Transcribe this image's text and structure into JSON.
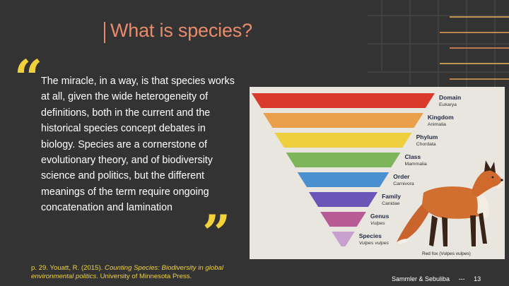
{
  "slide": {
    "title": "What is species?",
    "quote_open": "“",
    "quote_close": "”",
    "quote": "The miracle, in a way, is that species works at all, given the wide heterogeneity of definitions, both in the current and the historical species concept debates in biology. Species are a cornerstone of evolutionary theory, and of biodiversity science and politics, but the different meanings of the term require ongoing concatenation and lamination",
    "citation": {
      "prefix": "p. 29. Youatt, R. (2015). ",
      "title": "Counting Species: Biodiversity in global environmental politics",
      "suffix": ". University of Minnesota Press."
    },
    "footer": {
      "authors": "Sammler  & Sebuliba",
      "separator": "---",
      "page_number": "13"
    }
  },
  "figure": {
    "caption": "Red fox (Vulpes vulpes)",
    "levels": [
      {
        "rank": "Domain",
        "taxon": "Eukarya",
        "color": "#d93a2b"
      },
      {
        "rank": "Kingdom",
        "taxon": "Animalia",
        "color": "#eaa04b"
      },
      {
        "rank": "Phylum",
        "taxon": "Chordata",
        "color": "#f0cf3f"
      },
      {
        "rank": "Class",
        "taxon": "Mammalia",
        "color": "#7cb55a"
      },
      {
        "rank": "Order",
        "taxon": "Carnivora",
        "color": "#4a8fd0"
      },
      {
        "rank": "Family",
        "taxon": "Canidae",
        "color": "#6b56b7"
      },
      {
        "rank": "Genus",
        "taxon": "Vulpes",
        "color": "#b85b95"
      },
      {
        "rank": "Species",
        "taxon": "Vulpes vulpes",
        "color": "#c8a0d0"
      }
    ]
  },
  "colors": {
    "background": "#333333",
    "accent_title": "#e98b6a",
    "accent_quote": "#f2d23b"
  }
}
